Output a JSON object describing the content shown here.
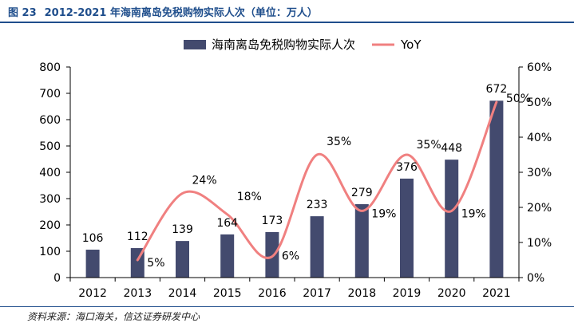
{
  "figure": {
    "label": "图 23",
    "title": "2012-2021 年海南离岛免税购物实际人次（单位：万人）",
    "source": "资料来源：海口海关，信达证券研发中心"
  },
  "colors": {
    "bar": "#434a6e",
    "line": "#f08080",
    "title": "#1f4e8c"
  },
  "chart_data": {
    "type": "bar",
    "categories": [
      "2012",
      "2013",
      "2014",
      "2015",
      "2016",
      "2017",
      "2018",
      "2019",
      "2020",
      "2021"
    ],
    "series": [
      {
        "name": "海南离岛免税购物实际人次",
        "type": "bar",
        "axis": "left",
        "values": [
          106,
          112,
          139,
          164,
          173,
          233,
          279,
          376,
          448,
          672
        ],
        "labels": [
          "106",
          "112",
          "139",
          "164",
          "173",
          "233",
          "279",
          "376",
          "448",
          "672"
        ]
      },
      {
        "name": "YoY",
        "type": "line",
        "axis": "right",
        "smooth": true,
        "values": [
          null,
          5,
          24,
          18,
          6,
          35,
          19,
          35,
          19,
          50
        ],
        "labels": [
          "",
          "5%",
          "24%",
          "18%",
          "6%",
          "35%",
          "19%",
          "35%",
          "19%",
          "50%"
        ]
      }
    ],
    "y_left": {
      "min": 0,
      "max": 800,
      "ticks": [
        "0",
        "100",
        "200",
        "300",
        "400",
        "500",
        "600",
        "700",
        "800"
      ]
    },
    "y_right": {
      "min": 0,
      "max": 60,
      "ticks": [
        "0%",
        "10%",
        "20%",
        "30%",
        "40%",
        "50%",
        "60%"
      ]
    },
    "legend": "top-center",
    "grid": false
  }
}
